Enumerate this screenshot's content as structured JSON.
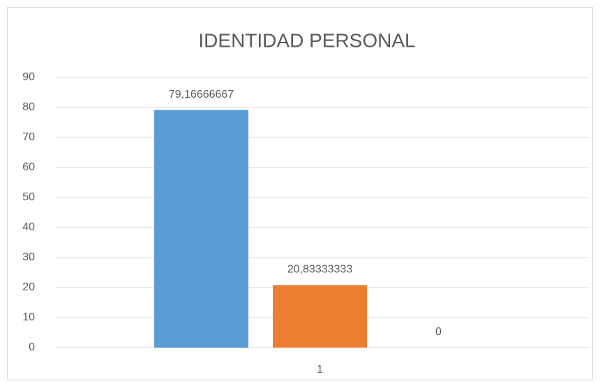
{
  "chart_data": {
    "type": "bar",
    "title": "IDENTIDAD PERSONAL",
    "categories": [
      "1"
    ],
    "series": [
      {
        "color": "#5b9bd5",
        "values": [
          79.16666667
        ],
        "value_labels": [
          "79,16666667"
        ]
      },
      {
        "color": "#ed7d31",
        "values": [
          20.83333333
        ],
        "value_labels": [
          "20,83333333"
        ]
      },
      {
        "color": "#a5a5a5",
        "values": [
          0
        ]
      }
    ],
    "ylim": [
      0,
      90
    ],
    "yticks": [
      0,
      10,
      20,
      30,
      40,
      50,
      60,
      70,
      80,
      90
    ],
    "grid": true,
    "legend": false
  }
}
